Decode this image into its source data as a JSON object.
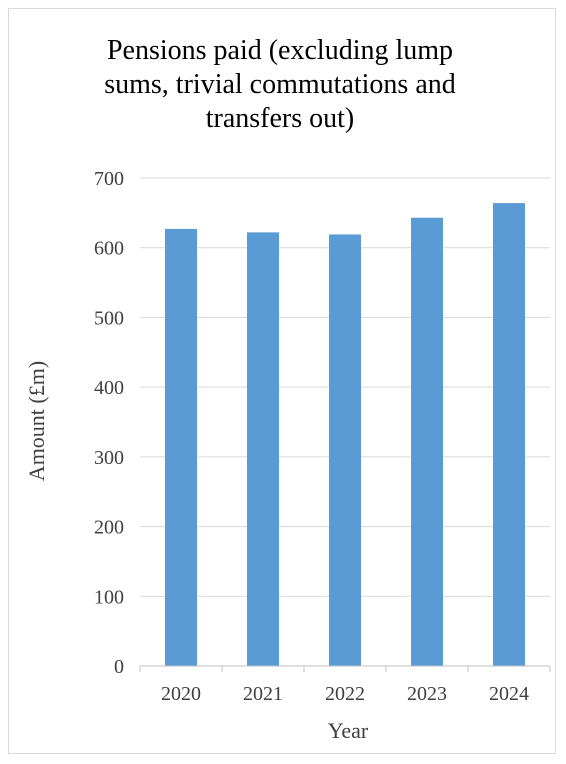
{
  "chart_data": {
    "type": "bar",
    "title_lines": [
      "Pensions paid (excluding lump",
      "sums, trivial commutations and",
      "transfers out)"
    ],
    "xlabel": "Year",
    "ylabel": "Amount (£m)",
    "categories": [
      "2020",
      "2021",
      "2022",
      "2023",
      "2024"
    ],
    "values": [
      627,
      622,
      619,
      643,
      664
    ],
    "ylim": [
      0,
      700
    ],
    "yticks": [
      0,
      100,
      200,
      300,
      400,
      500,
      600,
      700
    ],
    "grid": true,
    "legend": "none",
    "bar_color": "#5b9bd5",
    "grid_color": "#d9d9d9",
    "axis_color": "#bfbfbf"
  }
}
